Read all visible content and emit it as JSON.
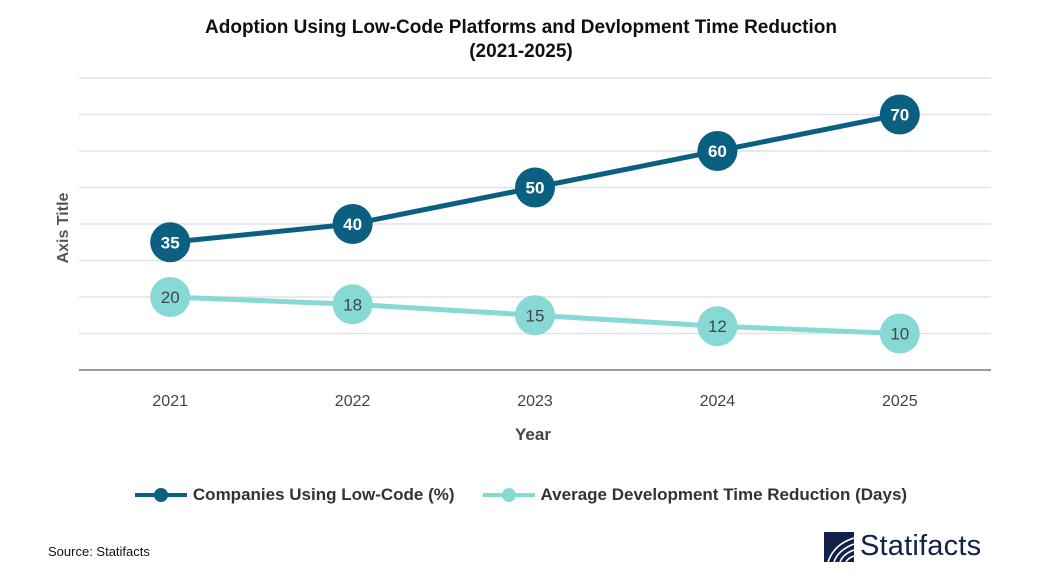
{
  "chart_data": {
    "type": "line",
    "title_line1": "Adoption Using Low-Code Platforms and Devlopment Time Reduction",
    "title_line2": "(2021-2025)",
    "xlabel": "Year",
    "ylabel": "Axis Title",
    "categories": [
      "2021",
      "2022",
      "2023",
      "2024",
      "2025"
    ],
    "ylim": [
      0,
      80
    ],
    "y_grid_step": 10,
    "grid": true,
    "y_tick_labels_shown": false,
    "legend_position": "bottom",
    "series": [
      {
        "name": "Companies Using Low-Code (%)",
        "values": [
          35,
          40,
          50,
          60,
          70
        ],
        "color": "#0b5f80",
        "label_color": "#ffffff"
      },
      {
        "name": "Average Development Time Reduction (Days)",
        "values": [
          20,
          18,
          15,
          12,
          10
        ],
        "color": "#86d9d5",
        "label_color": "#3f4a4f"
      }
    ]
  },
  "footer": {
    "source": "Source: Statifacts",
    "logo_text": "Statifacts"
  }
}
